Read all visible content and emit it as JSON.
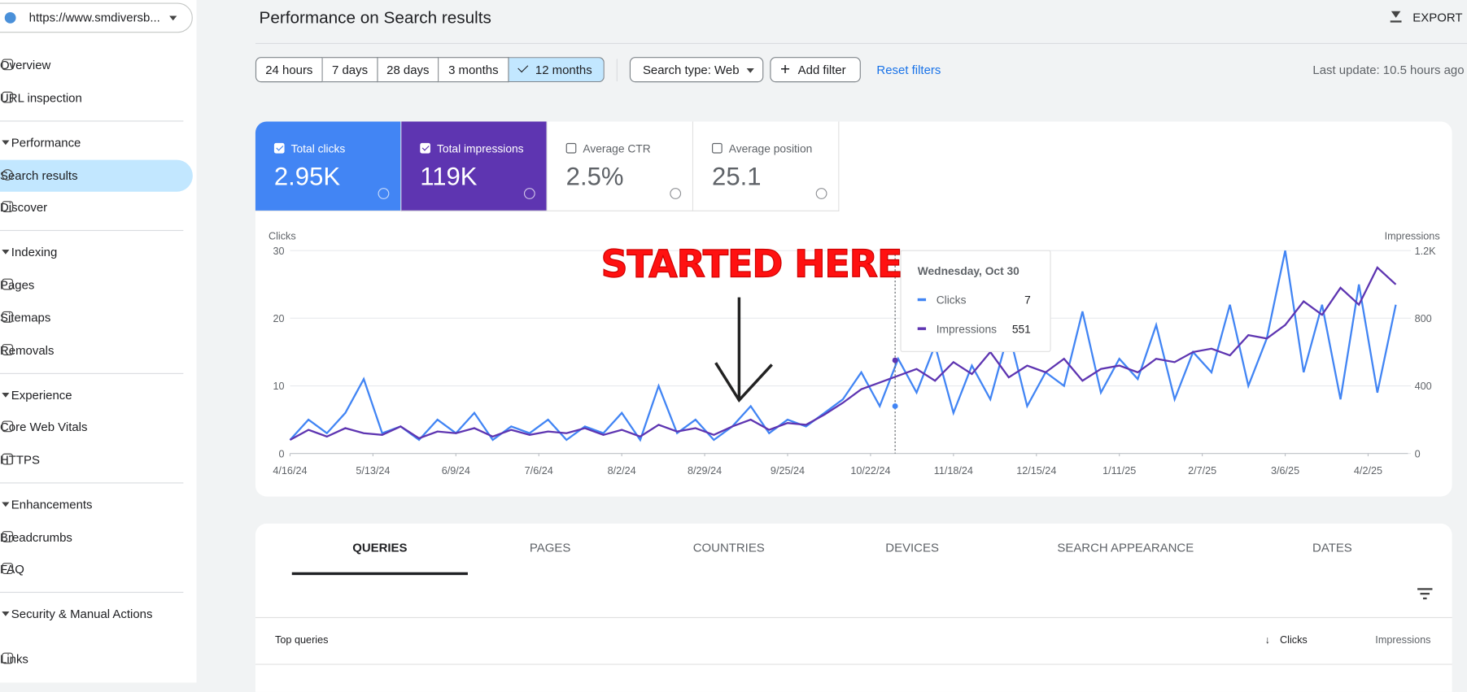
{
  "sidebar": {
    "site": "https://www.smdiversb...",
    "items": [
      {
        "label": "Overview",
        "section": false
      },
      {
        "label": "URL inspection",
        "section": false
      },
      {
        "label": "Performance",
        "section": true
      },
      {
        "label": "Search results",
        "section": false,
        "active": true
      },
      {
        "label": "Discover",
        "section": false
      },
      {
        "label": "Indexing",
        "section": true
      },
      {
        "label": "Pages",
        "section": false
      },
      {
        "label": "Sitemaps",
        "section": false
      },
      {
        "label": "Removals",
        "section": false
      },
      {
        "label": "Experience",
        "section": true
      },
      {
        "label": "Core Web Vitals",
        "section": false
      },
      {
        "label": "HTTPS",
        "section": false
      },
      {
        "label": "Enhancements",
        "section": true
      },
      {
        "label": "Breadcrumbs",
        "section": false
      },
      {
        "label": "FAQ",
        "section": false
      },
      {
        "label": "Security & Manual Actions",
        "section": true
      },
      {
        "label": "Links",
        "section": false
      }
    ]
  },
  "header": {
    "title": "Performance on Search results",
    "export": "EXPORT"
  },
  "filters": {
    "dates": [
      "24 hours",
      "7 days",
      "28 days",
      "3 months",
      "12 months"
    ],
    "selected": 4,
    "search_type": "Search type: Web",
    "add_filter": "Add filter",
    "reset": "Reset filters",
    "last_update": "Last update: 10.5 hours ago"
  },
  "metrics": [
    {
      "label": "Total clicks",
      "value": "2.95K",
      "checked": true,
      "color": "#4285f4"
    },
    {
      "label": "Total impressions",
      "value": "119K",
      "checked": true,
      "color": "#5e35b1"
    },
    {
      "label": "Average CTR",
      "value": "2.5%",
      "checked": false
    },
    {
      "label": "Average position",
      "value": "25.1",
      "checked": false
    }
  ],
  "chart_data": {
    "type": "line",
    "y_label": "Clicks",
    "y2_label": "Impressions",
    "x": [
      0,
      6,
      12,
      18,
      24,
      30,
      36,
      42,
      48,
      54,
      60,
      66,
      72,
      78,
      84,
      90,
      96,
      102,
      108,
      114,
      120,
      126,
      132,
      138,
      144,
      150,
      156,
      162,
      168,
      174,
      180,
      186,
      192,
      198,
      204,
      210,
      216,
      222,
      228,
      234,
      240,
      246,
      252,
      258,
      264,
      270,
      276,
      282,
      288,
      294,
      300,
      306,
      312,
      318,
      324,
      330,
      336,
      342,
      348,
      354,
      360
    ],
    "xlim": [
      0,
      364
    ],
    "xticks": [
      {
        "value": 0,
        "label": "4/16/24"
      },
      {
        "value": 27,
        "label": "5/13/24"
      },
      {
        "value": 54,
        "label": "6/9/24"
      },
      {
        "value": 81,
        "label": "7/6/24"
      },
      {
        "value": 108,
        "label": "8/2/24"
      },
      {
        "value": 135,
        "label": "8/29/24"
      },
      {
        "value": 162,
        "label": "9/25/24"
      },
      {
        "value": 189,
        "label": "10/22/24"
      },
      {
        "value": 216,
        "label": "11/18/24"
      },
      {
        "value": 243,
        "label": "12/15/24"
      },
      {
        "value": 270,
        "label": "1/11/25"
      },
      {
        "value": 297,
        "label": "2/7/25"
      },
      {
        "value": 324,
        "label": "3/6/25"
      },
      {
        "value": 351,
        "label": "4/2/25"
      }
    ],
    "ylim": [
      0,
      30
    ],
    "yticks": [
      0,
      10,
      20,
      30
    ],
    "y2lim": [
      0,
      1200
    ],
    "y2ticks": [
      0,
      400,
      800,
      {
        "value": 1200,
        "label": "1.2K"
      }
    ],
    "grid": true,
    "series": [
      {
        "name": "Clicks",
        "color": "#4285f4",
        "values": [
          2,
          5,
          3,
          6,
          11,
          3,
          4,
          2,
          5,
          3,
          6,
          2,
          4,
          3,
          5,
          2,
          4,
          3,
          6,
          2,
          10,
          3,
          5,
          2,
          4,
          7,
          3,
          5,
          4,
          6,
          8,
          12,
          7,
          14,
          9,
          16,
          6,
          13,
          8,
          18,
          7,
          12,
          10,
          21,
          9,
          14,
          11,
          19,
          8,
          15,
          12,
          22,
          10,
          17,
          30,
          12,
          22,
          8,
          25,
          9,
          22
        ]
      },
      {
        "name": "Impressions",
        "color": "#5e35b1",
        "axis": "y2",
        "values": [
          80,
          140,
          100,
          150,
          120,
          110,
          160,
          90,
          130,
          120,
          150,
          100,
          140,
          110,
          130,
          120,
          150,
          110,
          140,
          100,
          170,
          130,
          150,
          110,
          160,
          200,
          140,
          180,
          170,
          230,
          300,
          380,
          420,
          460,
          500,
          430,
          540,
          470,
          600,
          450,
          520,
          480,
          560,
          430,
          500,
          520,
          480,
          560,
          540,
          600,
          620,
          580,
          700,
          680,
          760,
          900,
          820,
          980,
          880,
          1100,
          1000
        ]
      }
    ],
    "annotation": "STARTED HERE",
    "tooltip": {
      "x": 197,
      "date": "Wednesday, Oct 30",
      "items": [
        {
          "name": "Clicks",
          "value": 7
        },
        {
          "name": "Impressions",
          "value": 551
        }
      ]
    }
  },
  "tabs": {
    "items": [
      "QUERIES",
      "PAGES",
      "COUNTRIES",
      "DEVICES",
      "SEARCH APPEARANCE",
      "DATES"
    ],
    "selected": 0
  },
  "table": {
    "columns": [
      "Top queries",
      "Clicks",
      "Impressions"
    ]
  }
}
